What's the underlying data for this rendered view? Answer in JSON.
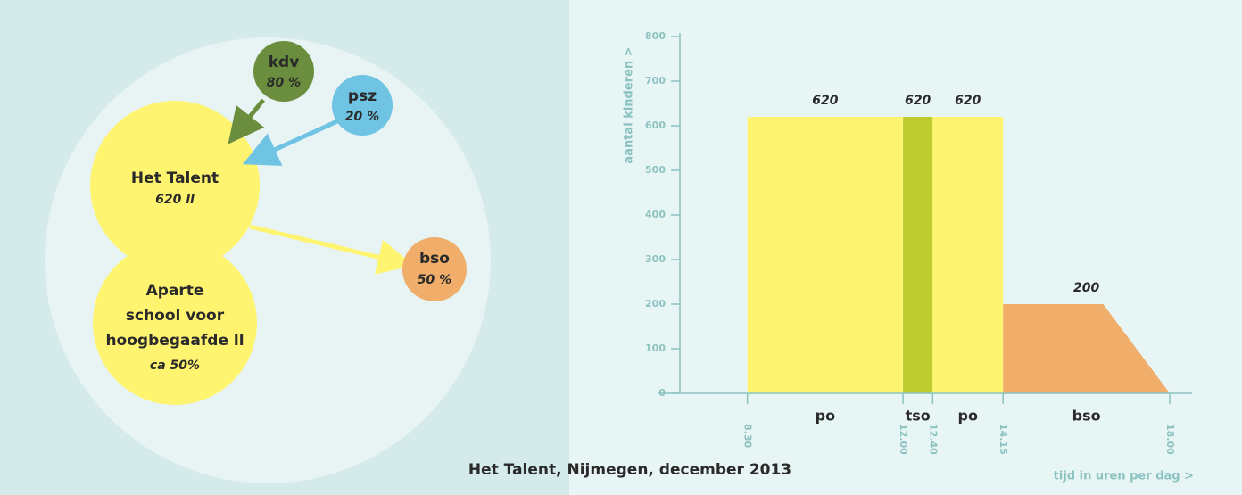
{
  "diagram": {
    "nodes": [
      {
        "label": [
          "kdv"
        ],
        "sub": "80 %"
      },
      {
        "label": [
          "psz"
        ],
        "sub": "20 %"
      },
      {
        "label": [
          "Het Talent"
        ],
        "sub": "620 ll"
      },
      {
        "label": [
          "Aparte",
          "school voor",
          "hoogbegaafde ll"
        ],
        "sub": "ca 50%"
      },
      {
        "label": [
          "bso"
        ],
        "sub": "50 %"
      }
    ]
  },
  "chart_data": {
    "type": "area",
    "ylabel": "aantal kinderen >",
    "xlabel": "tijd in uren per dag >",
    "caption": "Het Talent, Nijmegen, december 2013",
    "ylim": [
      0,
      800
    ],
    "yticks": [
      0,
      100,
      200,
      300,
      400,
      500,
      600,
      700,
      800
    ],
    "xlim": [
      6.5,
      18.5
    ],
    "xticks": [
      {
        "value": 8.5,
        "label": "8.30"
      },
      {
        "value": 12,
        "label": "12.00"
      },
      {
        "value": 12.6667,
        "label": "12.40"
      },
      {
        "value": 14.25,
        "label": "14.15"
      },
      {
        "value": 18,
        "label": "18.00"
      }
    ],
    "series": [
      {
        "name": "po",
        "color": "#fff470",
        "x": [
          8.5,
          12
        ],
        "values": [
          620,
          620
        ]
      },
      {
        "name": "tso",
        "color": "#bfcc30",
        "x": [
          12,
          12.6667
        ],
        "values": [
          620,
          620
        ]
      },
      {
        "name": "po",
        "color": "#fff470",
        "x": [
          12.6667,
          14.25
        ],
        "values": [
          620,
          620
        ]
      },
      {
        "name": "bso",
        "color": "#f0ae6a",
        "x": [
          14.25,
          16.5,
          18
        ],
        "values": [
          200,
          200,
          0
        ]
      }
    ]
  }
}
